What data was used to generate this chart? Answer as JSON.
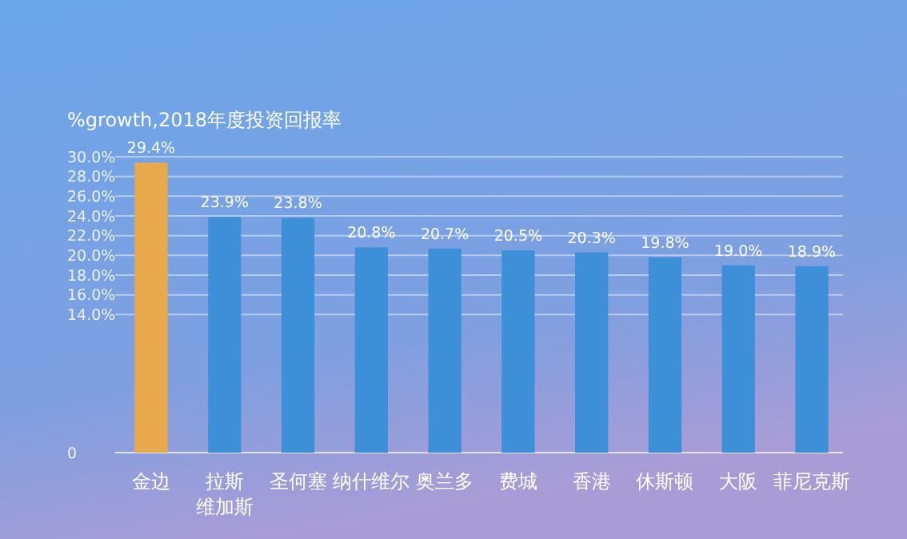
{
  "chart_data": {
    "type": "bar",
    "title": "%growth,2018年度投资回报率",
    "categories": [
      "金边",
      "拉斯维加斯",
      "圣何塞",
      "纳什维尔",
      "奥兰多",
      "费城",
      "香港",
      "休斯顿",
      "大阪",
      "菲尼克斯"
    ],
    "values": [
      29.4,
      23.9,
      23.8,
      20.8,
      20.7,
      20.5,
      20.3,
      19.8,
      19.0,
      18.9
    ],
    "value_labels": [
      "29.4%",
      "23.9%",
      "23.8%",
      "20.8%",
      "20.7%",
      "20.5%",
      "20.3%",
      "19.8%",
      "19.0%",
      "18.9%"
    ],
    "colors": [
      "#e8a94c",
      "#3d90d8",
      "#3d90d8",
      "#3d90d8",
      "#3d90d8",
      "#3d90d8",
      "#3d90d8",
      "#3d90d8",
      "#3d90d8",
      "#3d90d8"
    ],
    "ylim": [
      0,
      30
    ],
    "yticks": [
      0,
      {
        "value": 14,
        "label": "14.0%"
      },
      {
        "value": 16,
        "label": "16.0%"
      },
      {
        "value": 18,
        "label": "18.0%"
      },
      {
        "value": 20,
        "label": "20.0%"
      },
      {
        "value": 22,
        "label": "22.0%"
      },
      {
        "value": 24,
        "label": "24.0%"
      },
      {
        "value": 26,
        "label": "26.0%"
      },
      {
        "value": 28,
        "label": "28.0%"
      },
      {
        "value": 30,
        "label": "30.0%"
      }
    ],
    "grid": "y"
  }
}
